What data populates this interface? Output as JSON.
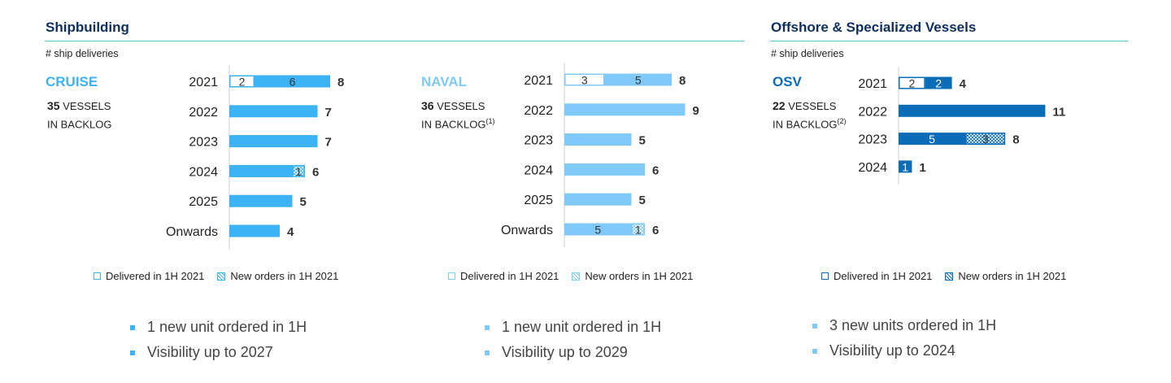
{
  "colors": {
    "title": "#0d2f5e",
    "cruise": "#3db2f5",
    "naval": "#7fcaf8",
    "osv": "#0b6cb8",
    "rule": "#5bc3d6"
  },
  "shipbuilding": {
    "title": "Shipbuilding",
    "subtitle": "# ship deliveries"
  },
  "offshore": {
    "title": "Offshore & Specialized Vessels",
    "subtitle": "# ship deliveries"
  },
  "cruise": {
    "name": "CRUISE",
    "backlog_count": "35",
    "backlog_line1": "VESSELS",
    "backlog_line2": "IN BACKLOG",
    "footnote": "",
    "bullets": [
      "1 new unit ordered in 1H",
      "Visibility up to 2027"
    ]
  },
  "naval": {
    "name": "NAVAL",
    "backlog_count": "36",
    "backlog_line1": "VESSELS",
    "backlog_line2": "IN BACKLOG",
    "footnote": "(1)",
    "bullets": [
      "1 new unit ordered in 1H",
      "Visibility up to 2029"
    ]
  },
  "osv": {
    "name": "OSV",
    "backlog_count": "22",
    "backlog_line1": "VESSELS",
    "backlog_line2": "IN BACKLOG",
    "footnote": "(2)",
    "bullets": [
      "3 new units ordered in 1H",
      "Visibility up to 2024"
    ]
  },
  "legend": {
    "delivered": "Delivered in 1H 2021",
    "new_orders": "New orders in 1H 2021"
  },
  "chart_data": [
    {
      "type": "bar",
      "orientation": "horizontal",
      "stacked": true,
      "id": "cruise",
      "color": "#3db2f5",
      "categories": [
        "2021",
        "2022",
        "2023",
        "2024",
        "2025",
        "Onwards"
      ],
      "totals": [
        8,
        7,
        7,
        6,
        5,
        4
      ],
      "series": [
        {
          "name": "Delivered in 1H 2021",
          "values": [
            2,
            0,
            0,
            0,
            0,
            0
          ],
          "labels": [
            "2",
            "",
            "",
            "",
            "",
            ""
          ]
        },
        {
          "name": "",
          "values": [
            6,
            7,
            7,
            5,
            5,
            4
          ],
          "labels": [
            "6",
            "",
            "",
            "",
            "",
            ""
          ]
        },
        {
          "name": "New orders in 1H 2021",
          "values": [
            0,
            0,
            0,
            1,
            0,
            0
          ],
          "labels": [
            "",
            "",
            "",
            "1",
            "",
            ""
          ]
        }
      ],
      "xlim": [
        0,
        9
      ]
    },
    {
      "type": "bar",
      "orientation": "horizontal",
      "stacked": true,
      "id": "naval",
      "color": "#7fcaf8",
      "categories": [
        "2021",
        "2022",
        "2023",
        "2024",
        "2025",
        "Onwards"
      ],
      "totals": [
        8,
        9,
        5,
        6,
        5,
        6
      ],
      "series": [
        {
          "name": "Delivered in 1H 2021",
          "values": [
            3,
            0,
            0,
            0,
            0,
            0
          ],
          "labels": [
            "3",
            "",
            "",
            "",
            "",
            ""
          ]
        },
        {
          "name": "",
          "values": [
            5,
            9,
            5,
            6,
            5,
            5
          ],
          "labels": [
            "5",
            "",
            "",
            "",
            "",
            "5"
          ]
        },
        {
          "name": "New orders in 1H 2021",
          "values": [
            0,
            0,
            0,
            0,
            0,
            1
          ],
          "labels": [
            "",
            "",
            "",
            "",
            "",
            "1"
          ]
        }
      ],
      "xlim": [
        0,
        9
      ]
    },
    {
      "type": "bar",
      "orientation": "horizontal",
      "stacked": true,
      "id": "osv",
      "color": "#0b6cb8",
      "categories": [
        "2021",
        "2022",
        "2023",
        "2024"
      ],
      "totals": [
        4,
        11,
        8,
        1
      ],
      "series": [
        {
          "name": "Delivered in 1H 2021",
          "values": [
            2,
            0,
            0,
            0
          ],
          "labels": [
            "2",
            "",
            "",
            ""
          ]
        },
        {
          "name": "",
          "values": [
            2,
            11,
            5,
            1
          ],
          "labels": [
            "2",
            "",
            "5",
            "1"
          ]
        },
        {
          "name": "New orders in 1H 2021",
          "values": [
            0,
            0,
            3,
            0
          ],
          "labels": [
            "",
            "",
            "3",
            ""
          ]
        }
      ],
      "xlim": [
        0,
        11
      ]
    }
  ]
}
